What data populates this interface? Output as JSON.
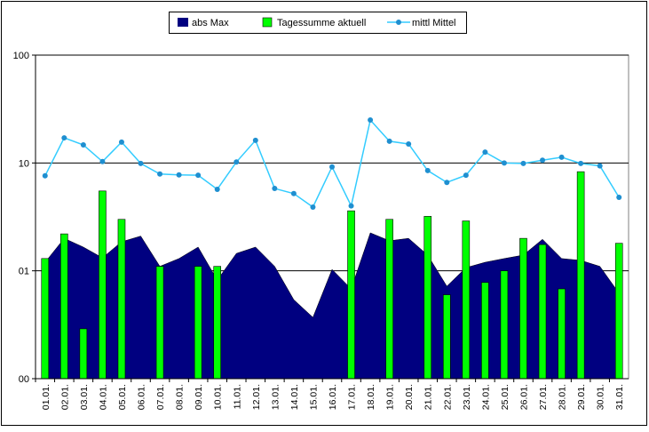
{
  "chart_data": {
    "type": "combo",
    "categories": [
      "01.01.",
      "02.01.",
      "03.01.",
      "04.01.",
      "05.01.",
      "06.01.",
      "07.01.",
      "08.01.",
      "09.01.",
      "10.01.",
      "11.01.",
      "12.01.",
      "13.01.",
      "14.01.",
      "15.01.",
      "16.01.",
      "17.01.",
      "18.01.",
      "19.01.",
      "20.01.",
      "21.01.",
      "22.01.",
      "23.01.",
      "24.01.",
      "25.01.",
      "26.01.",
      "27.01.",
      "28.01.",
      "29.01.",
      "30.01.",
      "31.01."
    ],
    "series": [
      {
        "name": "abs Max",
        "kind": "area",
        "color": "#000080",
        "values": [
          1.2,
          2.0,
          1.66,
          1.32,
          1.86,
          2.1,
          1.1,
          1.3,
          1.66,
          0.82,
          1.45,
          1.66,
          1.1,
          0.54,
          0.37,
          1.03,
          0.68,
          2.25,
          1.9,
          2.0,
          1.4,
          0.72,
          1.07,
          1.2,
          1.3,
          1.4,
          1.96,
          1.3,
          1.25,
          1.1,
          0.62
        ]
      },
      {
        "name": "Tagessumme aktuell",
        "kind": "bar",
        "color": "#00ff00",
        "values": [
          1.3,
          2.2,
          0.29,
          5.5,
          3.0,
          null,
          1.1,
          null,
          1.1,
          1.1,
          null,
          null,
          null,
          null,
          null,
          null,
          3.6,
          null,
          3.0,
          null,
          3.2,
          0.6,
          2.9,
          0.78,
          1.0,
          2.0,
          1.75,
          0.68,
          8.3,
          null,
          1.8
        ]
      },
      {
        "name": "mittl Mittel",
        "kind": "line",
        "color": "#33ccff",
        "values": [
          7.6,
          17.1,
          14.7,
          10.3,
          15.6,
          9.9,
          7.9,
          7.75,
          7.7,
          5.7,
          10.2,
          16.2,
          5.8,
          5.2,
          3.9,
          9.2,
          4.0,
          25,
          15.9,
          15,
          8.5,
          6.6,
          7.7,
          12.6,
          10,
          9.9,
          10.6,
          11.3,
          9.9,
          9.4,
          4.8
        ]
      }
    ],
    "ylim": [
      0.1,
      100
    ],
    "log_scale": true,
    "yticks": [
      {
        "value": 0.1,
        "label": "00"
      },
      {
        "value": 1,
        "label": "01"
      },
      10,
      100
    ],
    "grid": true,
    "legend": "top"
  }
}
